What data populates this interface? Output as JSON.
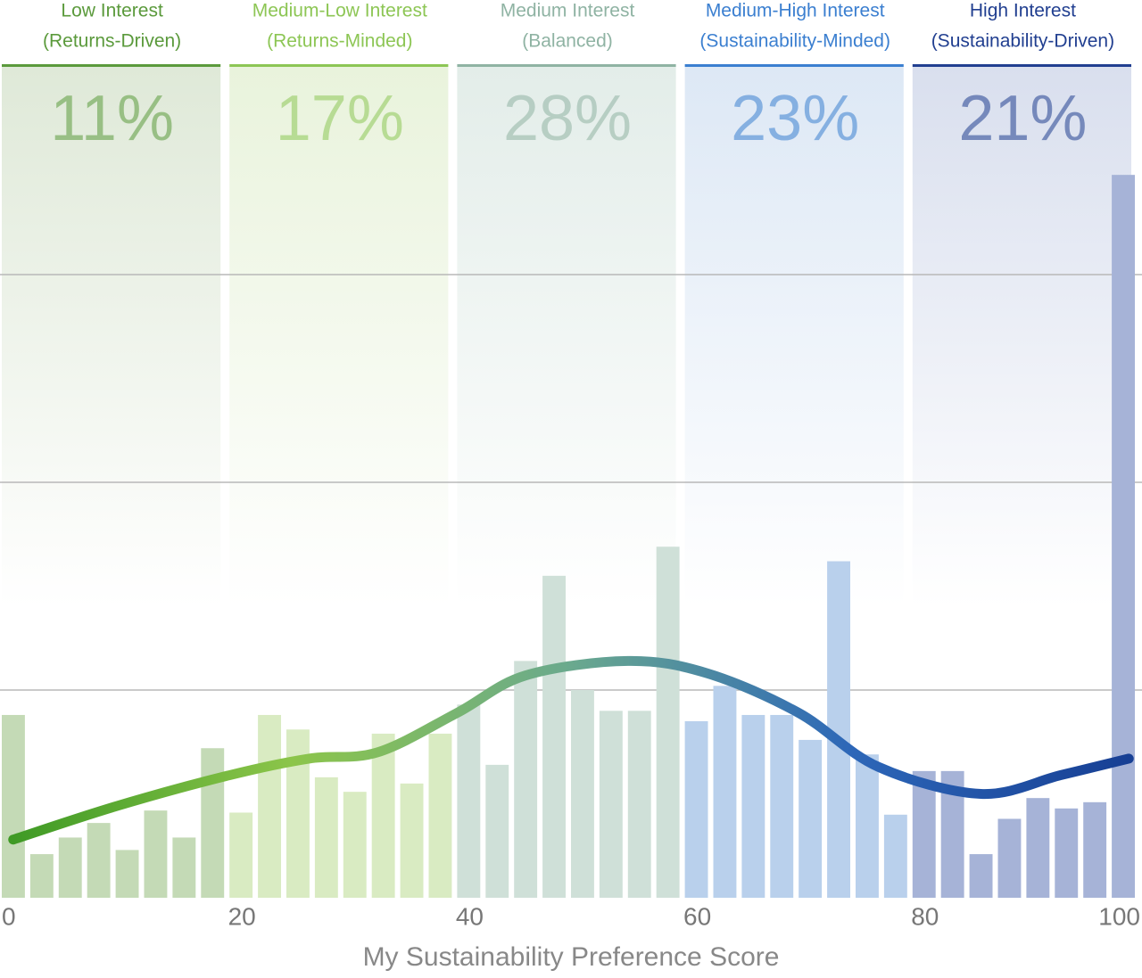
{
  "chart_data": {
    "type": "histogram",
    "xlabel": "My Sustainability Preference Score",
    "xlim": [
      0,
      100
    ],
    "xticks": [
      0,
      20,
      40,
      60,
      80,
      100
    ],
    "ylim": [
      0,
      4
    ],
    "grid_lines": [
      1,
      2,
      3
    ],
    "bins": [
      0,
      2.5,
      5,
      7.5,
      10,
      12.5,
      15,
      17.5,
      20,
      22.5,
      25,
      27.5,
      30,
      32.5,
      35,
      37.5,
      40,
      42.5,
      45,
      47.5,
      50,
      52.5,
      55,
      57.5,
      60,
      62.5,
      65,
      67.5,
      70,
      72.5,
      75,
      77.5,
      80,
      82.5,
      85,
      87.5,
      90,
      92.5,
      95,
      97.5,
      100
    ],
    "counts": [
      0.88,
      0.21,
      0.29,
      0.36,
      0.23,
      0.42,
      0.29,
      0.72,
      0.41,
      0.88,
      0.81,
      0.58,
      0.51,
      0.79,
      0.55,
      0.79,
      0.93,
      0.64,
      1.14,
      1.55,
      1.0,
      0.9,
      0.9,
      1.69,
      0.85,
      1.02,
      0.88,
      0.88,
      0.76,
      1.62,
      0.69,
      0.4,
      0.61,
      0.61,
      0.21,
      0.38,
      0.48,
      0.43,
      0.46,
      3.48
    ],
    "bands": [
      {
        "title": "Low Interest",
        "subtitle": "(Returns-Driven)",
        "range": [
          0,
          20
        ],
        "share": 11,
        "share_label": "11%",
        "text_color": "#5b9a3c",
        "bar_color": "#c4dab6",
        "bg_color": "#dfe9d8"
      },
      {
        "title": "Medium-Low Interest",
        "subtitle": "(Returns-Minded)",
        "range": [
          20,
          40
        ],
        "share": 17,
        "share_label": "17%",
        "text_color": "#8dc655",
        "bar_color": "#d9ebc2",
        "bg_color": "#e9f3dc"
      },
      {
        "title": "Medium Interest",
        "subtitle": "(Balanced)",
        "range": [
          40,
          60
        ],
        "share": 28,
        "share_label": "28%",
        "text_color": "#8fb3a3",
        "bar_color": "#cfe0d8",
        "bg_color": "#e3ede9"
      },
      {
        "title": "Medium-High Interest",
        "subtitle": "(Sustainability-Minded)",
        "range": [
          60,
          80
        ],
        "share": 23,
        "share_label": "23%",
        "text_color": "#3b7fd0",
        "bar_color": "#b9d0ec",
        "bg_color": "#dde8f5"
      },
      {
        "title": "High Interest",
        "subtitle": "(Sustainability-Driven)",
        "range": [
          80,
          100
        ],
        "share": 21,
        "share_label": "21%",
        "text_color": "#213f90",
        "bar_color": "#a6b3d7",
        "bg_color": "#d9dfee"
      }
    ],
    "curve": {
      "x": [
        1,
        10,
        20,
        27,
        33,
        40,
        46,
        55,
        62,
        70,
        77,
        86,
        93,
        99
      ],
      "values": [
        0.28,
        0.44,
        0.59,
        0.67,
        0.7,
        0.89,
        1.07,
        1.14,
        1.08,
        0.89,
        0.63,
        0.5,
        0.59,
        0.67
      ],
      "colors": [
        "#3f9a25",
        "#8cc54a",
        "#6aa98e",
        "#2d67b8",
        "#173f94"
      ]
    }
  }
}
